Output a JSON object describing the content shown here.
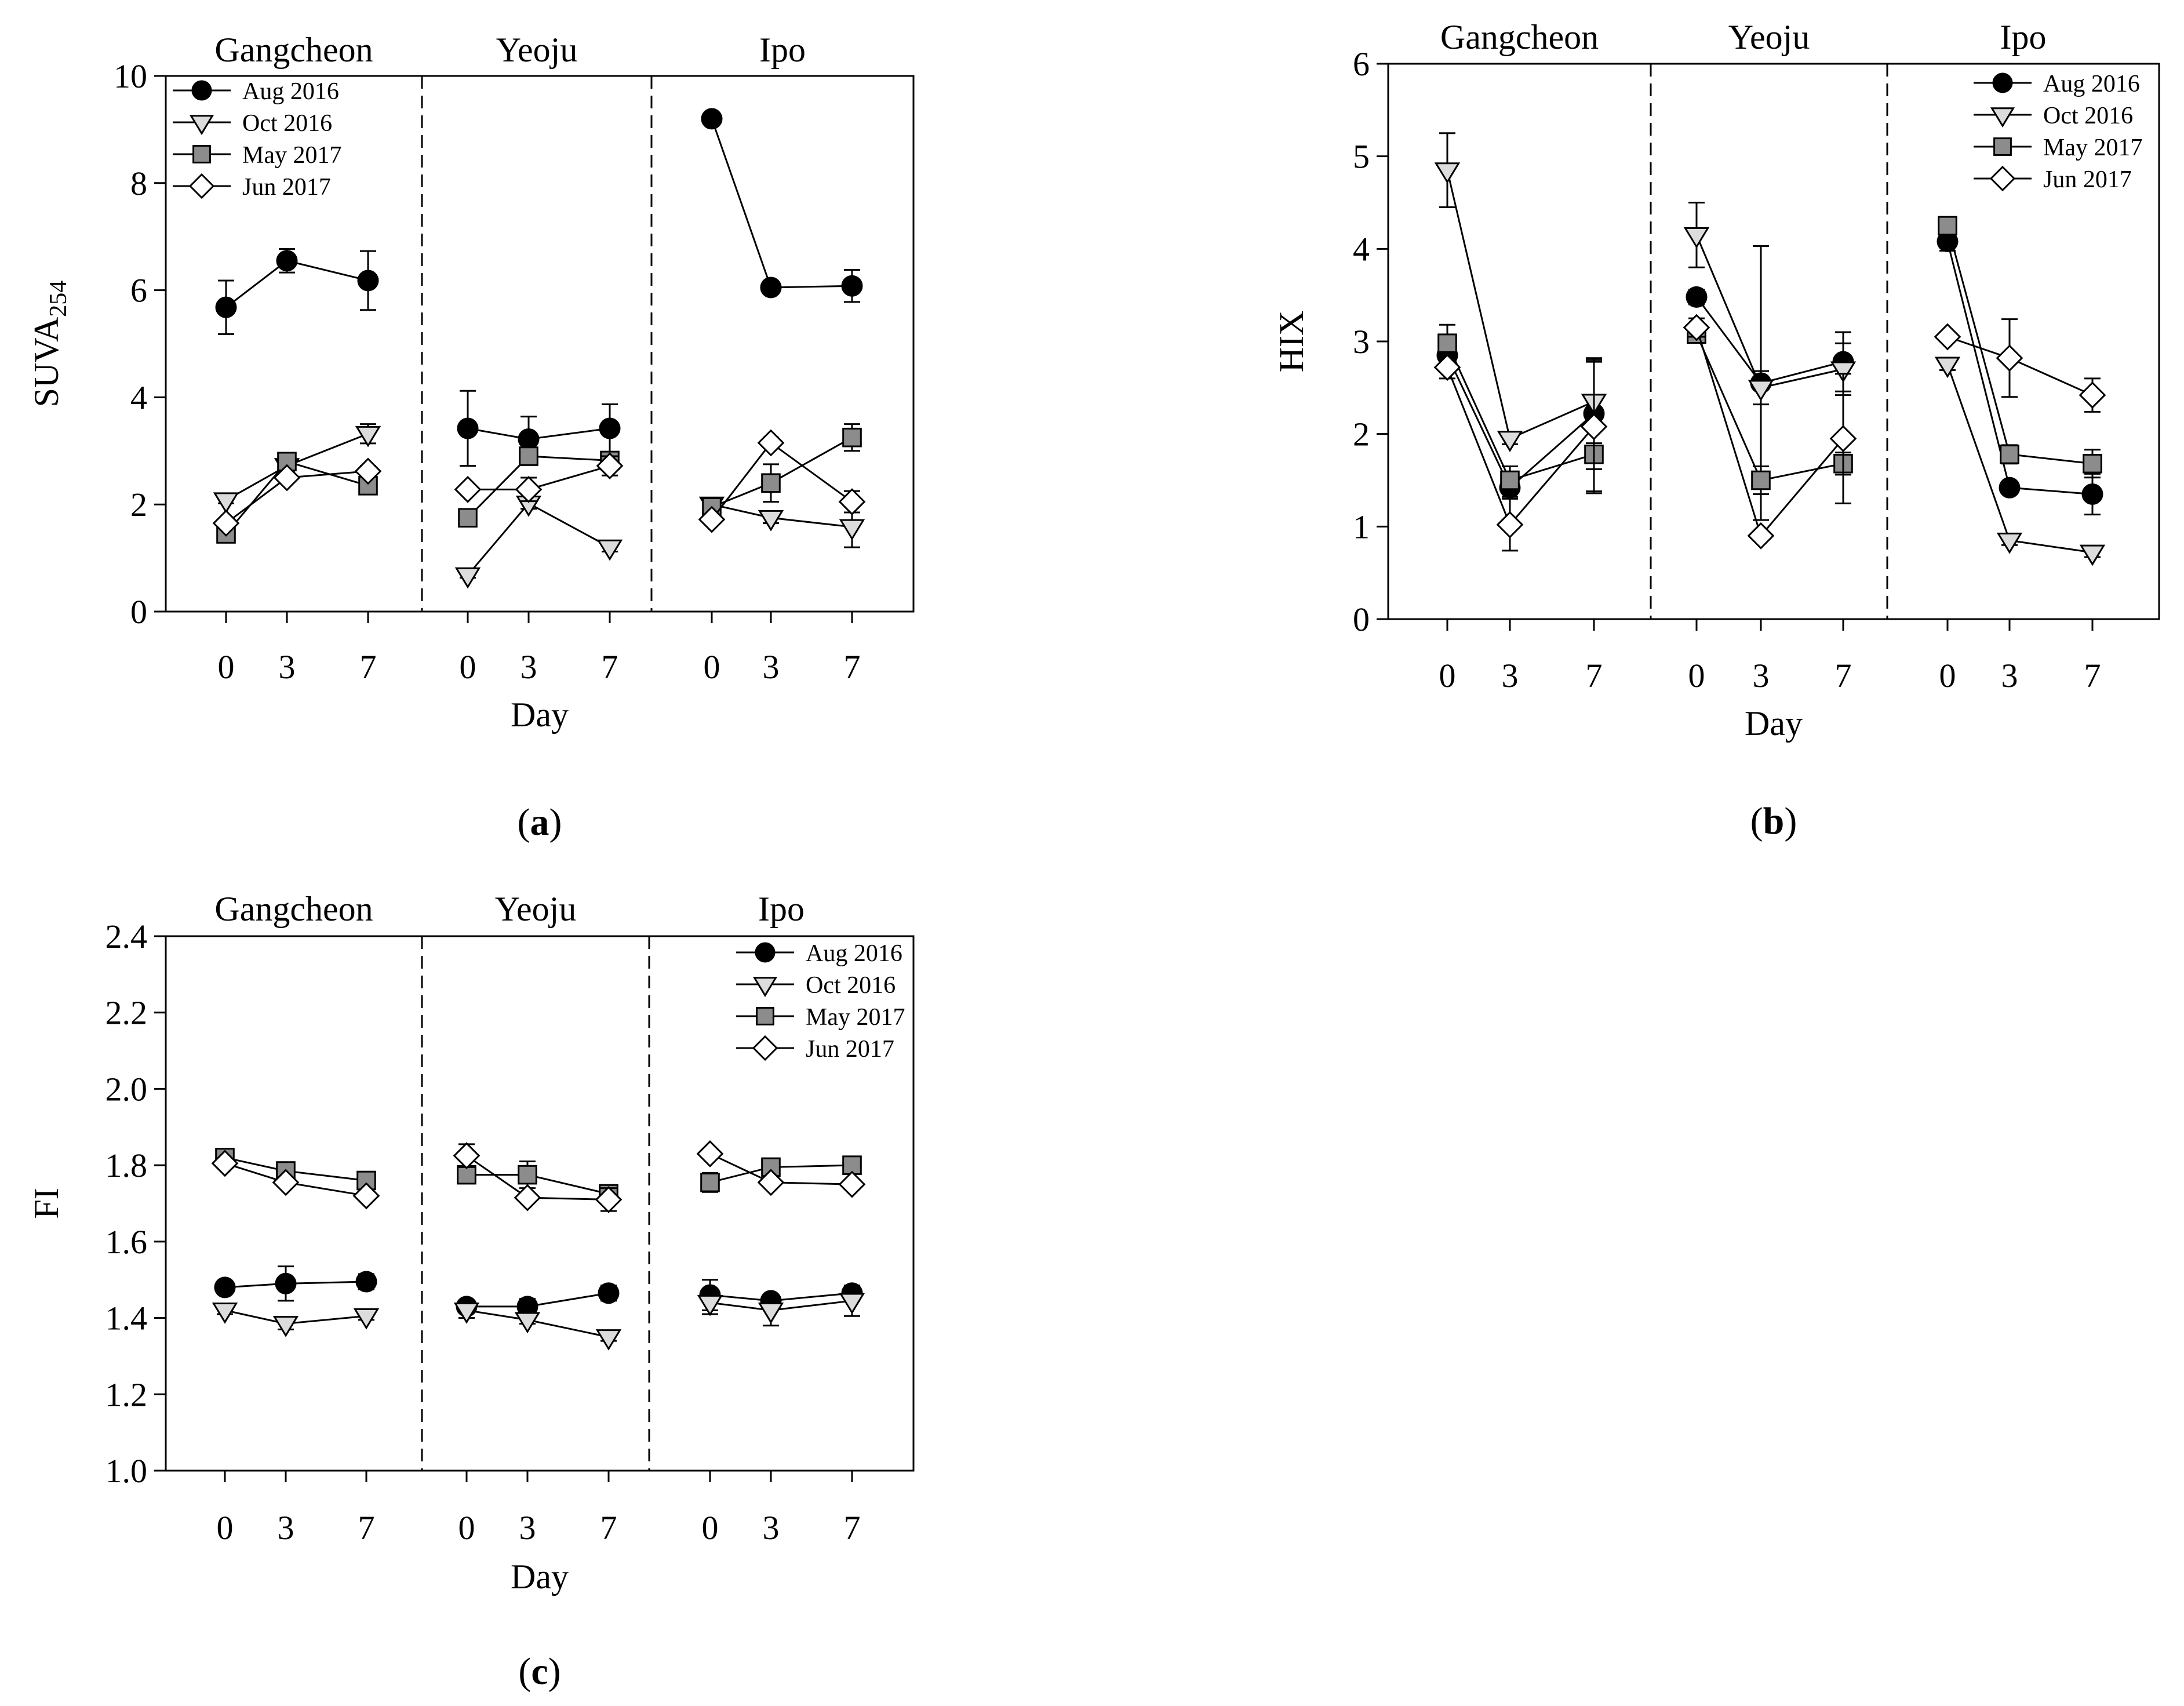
{
  "colors": {
    "aug_2016": "#000000",
    "oct_2016": "#dcdcdc",
    "may_2017": "#8c8c8c",
    "jun_2017": "#ffffff",
    "line": "#000000"
  },
  "chart_data": [
    {
      "id": "a",
      "type": "line",
      "caption_letter": "a",
      "ylabel_main": "SUVA",
      "ylabel_sub": "254",
      "xlabel": "Day",
      "ylim": [
        0,
        10
      ],
      "yticks": [
        0,
        2,
        4,
        6,
        8,
        10
      ],
      "ytick_labels": [
        "0",
        "2",
        "4",
        "6",
        "8",
        "10"
      ],
      "xticks_per_site": [
        0,
        3,
        7
      ],
      "sites": [
        "Gangcheon",
        "Yeoju",
        "Ipo"
      ],
      "legend_position": "top-left",
      "series": [
        {
          "name": "Aug 2016",
          "marker": "circle",
          "values": [
            [
              5.68,
              6.55,
              6.18
            ],
            [
              3.42,
              3.22,
              3.42
            ],
            [
              9.2,
              6.05,
              6.08
            ]
          ],
          "errors": [
            [
              0.5,
              0.22,
              0.55
            ],
            [
              0.7,
              0.42,
              0.45
            ],
            [
              0.08,
              0.08,
              0.3
            ]
          ]
        },
        {
          "name": "Oct 2016",
          "marker": "triangle-down",
          "values": [
            [
              2.08,
              2.72,
              3.32
            ],
            [
              0.68,
              2.02,
              1.2
            ],
            [
              2.0,
              1.75,
              1.58
            ]
          ],
          "errors": [
            [
              0.06,
              0.12,
              0.18
            ],
            [
              0.05,
              0.1,
              0.08
            ],
            [
              0.05,
              0.1,
              0.38
            ]
          ]
        },
        {
          "name": "May 2017",
          "marker": "square",
          "values": [
            [
              1.45,
              2.8,
              2.35
            ],
            [
              1.75,
              2.9,
              2.82
            ],
            [
              1.95,
              2.4,
              3.25
            ]
          ],
          "errors": [
            [
              0.08,
              0.1,
              0.08
            ],
            [
              0.06,
              0.1,
              0.12
            ],
            [
              0.06,
              0.35,
              0.25
            ]
          ]
        },
        {
          "name": "Jun 2017",
          "marker": "diamond",
          "values": [
            [
              1.65,
              2.5,
              2.62
            ],
            [
              2.28,
              2.28,
              2.72
            ],
            [
              1.72,
              3.15,
              2.05
            ]
          ],
          "errors": [
            [
              0.05,
              0.08,
              0.1
            ],
            [
              0.06,
              0.22,
              0.18
            ],
            [
              0.05,
              0.1,
              0.2
            ]
          ]
        }
      ]
    },
    {
      "id": "b",
      "type": "line",
      "caption_letter": "b",
      "ylabel_main": "HIX",
      "ylabel_sub": "",
      "xlabel": "Day",
      "ylim": [
        0,
        6
      ],
      "yticks": [
        0,
        1,
        2,
        3,
        4,
        5,
        6
      ],
      "ytick_labels": [
        "0",
        "1",
        "2",
        "3",
        "4",
        "5",
        "6"
      ],
      "xticks_per_site": [
        0,
        3,
        7
      ],
      "sites": [
        "Gangcheon",
        "Yeoju",
        "Ipo"
      ],
      "legend_position": "top-right",
      "series": [
        {
          "name": "Aug 2016",
          "marker": "circle",
          "values": [
            [
              2.85,
              1.42,
              2.22
            ],
            [
              3.48,
              2.55,
              2.78
            ],
            [
              4.08,
              1.42,
              1.35
            ]
          ],
          "errors": [
            [
              0.12,
              0.1,
              0.6
            ],
            [
              0.08,
              1.48,
              0.32
            ],
            [
              0.1,
              0.06,
              0.22
            ]
          ]
        },
        {
          "name": "Oct 2016",
          "marker": "triangle-down",
          "values": [
            [
              4.85,
              1.95,
              2.35
            ],
            [
              4.15,
              2.5,
              2.7
            ],
            [
              2.75,
              0.85,
              0.72
            ]
          ],
          "errors": [
            [
              0.4,
              0.06,
              0.45
            ],
            [
              0.35,
              0.18,
              0.28
            ],
            [
              0.06,
              0.05,
              0.05
            ]
          ]
        },
        {
          "name": "May 2017",
          "marker": "square",
          "values": [
            [
              2.98,
              1.5,
              1.78
            ],
            [
              3.08,
              1.5,
              1.68
            ],
            [
              4.25,
              1.78,
              1.68
            ]
          ],
          "errors": [
            [
              0.2,
              0.15,
              0.42
            ],
            [
              0.08,
              0.15,
              0.12
            ],
            [
              0.08,
              0.1,
              0.15
            ]
          ]
        },
        {
          "name": "Jun 2017",
          "marker": "diamond",
          "values": [
            [
              2.72,
              1.02,
              2.08
            ],
            [
              3.15,
              0.9,
              1.95
            ],
            [
              3.05,
              2.82,
              2.42
            ]
          ],
          "errors": [
            [
              0.12,
              0.28,
              0.7
            ],
            [
              0.1,
              0.05,
              0.7
            ],
            [
              0.05,
              0.42,
              0.18
            ]
          ]
        }
      ]
    },
    {
      "id": "c",
      "type": "line",
      "caption_letter": "c",
      "ylabel_main": "FI",
      "ylabel_sub": "",
      "xlabel": "Day",
      "ylim": [
        1.0,
        2.4
      ],
      "yticks": [
        1.0,
        1.2,
        1.4,
        1.6,
        1.8,
        2.0,
        2.2,
        2.4
      ],
      "ytick_labels": [
        "1.0",
        "1.2",
        "1.4",
        "1.6",
        "1.8",
        "2.0",
        "2.2",
        "2.4"
      ],
      "xticks_per_site": [
        0,
        3,
        7
      ],
      "sites": [
        "Gangcheon",
        "Yeoju",
        "Ipo"
      ],
      "legend_position": "top-right",
      "series": [
        {
          "name": "Aug 2016",
          "marker": "circle",
          "values": [
            [
              1.48,
              1.49,
              1.495
            ],
            [
              1.43,
              1.43,
              1.465
            ],
            [
              1.46,
              1.445,
              1.465
            ]
          ],
          "errors": [
            [
              0.01,
              0.045,
              0.02
            ],
            [
              0.015,
              0.02,
              0.02
            ],
            [
              0.04,
              0.015,
              0.02
            ]
          ]
        },
        {
          "name": "Oct 2016",
          "marker": "triangle-down",
          "values": [
            [
              1.42,
              1.385,
              1.405
            ],
            [
              1.42,
              1.395,
              1.35
            ],
            [
              1.44,
              1.42,
              1.445
            ]
          ],
          "errors": [
            [
              0.01,
              0.015,
              0.01
            ],
            [
              0.02,
              0.01,
              0.01
            ],
            [
              0.03,
              0.04,
              0.04
            ]
          ]
        },
        {
          "name": "May 2017",
          "marker": "square",
          "values": [
            [
              1.82,
              1.785,
              1.76
            ],
            [
              1.775,
              1.775,
              1.725
            ],
            [
              1.755,
              1.795,
              1.8
            ]
          ],
          "errors": [
            [
              0.01,
              0.015,
              0.01
            ],
            [
              0.015,
              0.035,
              0.015
            ],
            [
              0.025,
              0.015,
              0.01
            ]
          ]
        },
        {
          "name": "Jun 2017",
          "marker": "diamond",
          "values": [
            [
              1.805,
              1.755,
              1.72
            ],
            [
              1.825,
              1.715,
              1.71
            ],
            [
              1.83,
              1.755,
              1.75
            ]
          ],
          "errors": [
            [
              0.01,
              0.01,
              0.01
            ],
            [
              0.03,
              0.01,
              0.03
            ],
            [
              0.01,
              0.01,
              0.01
            ]
          ]
        }
      ]
    }
  ]
}
